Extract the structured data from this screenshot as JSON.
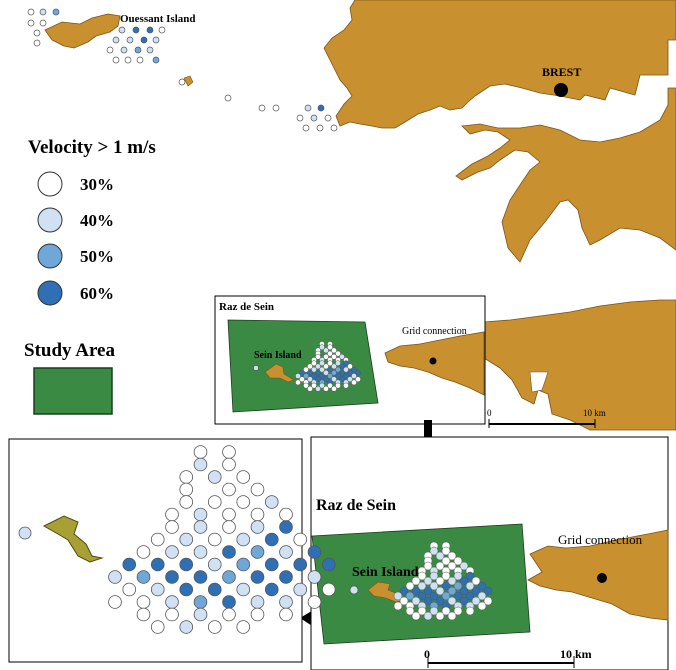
{
  "labels": {
    "ouessant": "Ouessant Island",
    "brest": "BREST",
    "raz_small": "Raz de Sein",
    "grid_small": "Grid connection",
    "sein_small": "Sein Island",
    "scale_small_0": "0",
    "scale_small_10": "10 km",
    "raz_large": "Raz de Sein",
    "grid_large": "Grid connection",
    "sein_large": "Sein Island",
    "scale_large_0": "0",
    "scale_large_10": "10 km"
  },
  "legend": {
    "title": "Velocity > 1 m/s",
    "items": [
      {
        "label": "30%",
        "color": "#ffffff"
      },
      {
        "label": "40%",
        "color": "#cfe1f3"
      },
      {
        "label": "50%",
        "color": "#6fa8d8"
      },
      {
        "label": "60%",
        "color": "#2f6fb5"
      }
    ],
    "study_area_title": "Study Area",
    "study_area_color": "#3a8a43"
  },
  "colors": {
    "land": "#c8902e",
    "land_stroke": "#7a5418",
    "study_area": "#3a8a43",
    "island_zoom": "#a9a035"
  }
}
